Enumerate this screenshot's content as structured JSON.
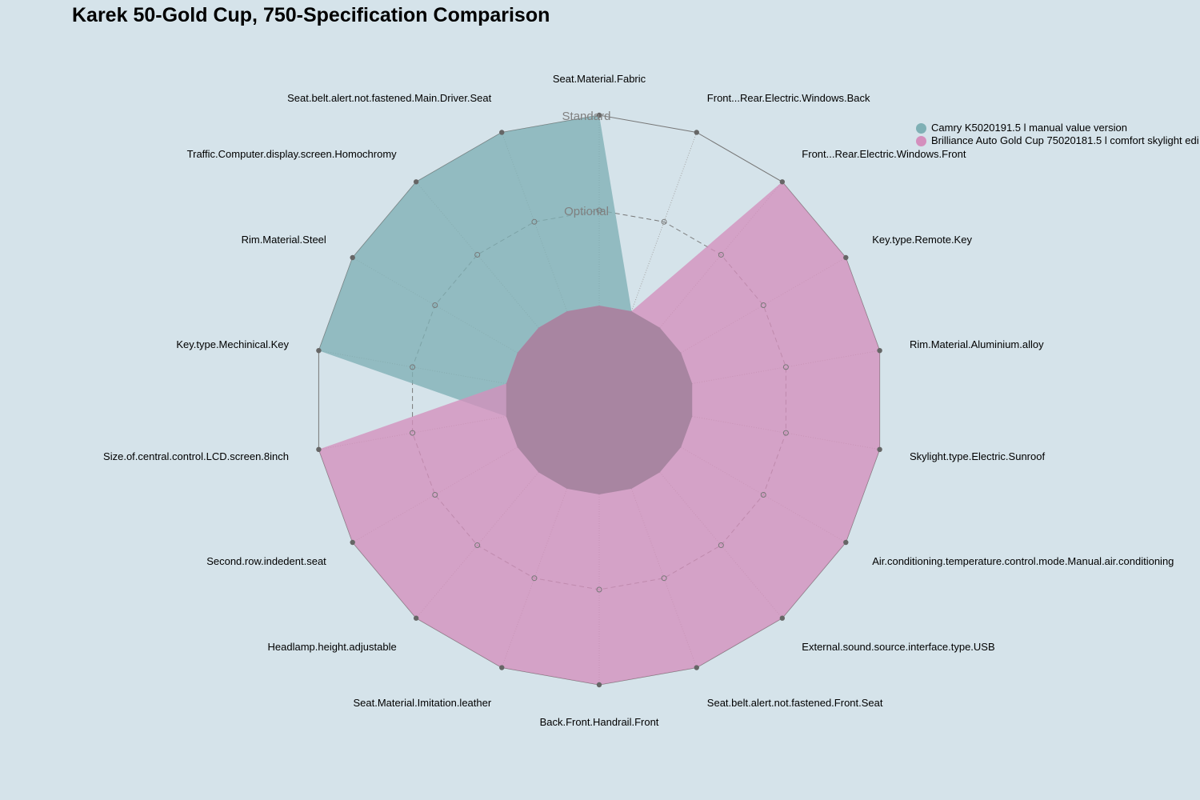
{
  "chart_data": {
    "type": "radar",
    "title": "Karek 50-Gold Cup, 750-Specification Comparison",
    "axis_labels": [
      "Seat.Material.Fabric",
      "Front...Rear.Electric.Windows.Back",
      "Front...Rear.Electric.Windows.Front",
      "Key.type.Remote.Key",
      "Rim.Material.Aluminium.alloy",
      "Skylight.type.Electric.Sunroof",
      "Air.conditioning.temperature.control.mode.Manual.air.conditioning",
      "External.sound.source.interface.type.USB",
      "Seat.belt.alert.not.fastened.Front.Seat",
      "Back.Front.Handrail.Front",
      "Seat.Material.Imitation.leather",
      "Headlamp.height.adjustable",
      "Second.row.indedent.seat",
      "Size.of.central.control.LCD.screen.8inch",
      "Key.type.Mechinical.Key",
      "Rim.Material.Steel",
      "Traffic.Computer.display.screen.Homochromy",
      "Seat.belt.alert.not.fastened.Main.Driver.Seat"
    ],
    "levels": [
      "",
      "Optional",
      "Standard"
    ],
    "scale_max": 2,
    "grid": true,
    "legend_position": "top-right",
    "series": [
      {
        "name": "Camry K5020191.5 l manual value version",
        "color": "#7fb0b5",
        "values": [
          2,
          0,
          0,
          0,
          0,
          0,
          0,
          0,
          0,
          0,
          0,
          0,
          0,
          0,
          2,
          2,
          2,
          2
        ]
      },
      {
        "name": "Brilliance Auto Gold Cup 75020181.5 l comfort skylight edi",
        "color": "#d48fbd",
        "values": [
          0,
          0,
          2,
          2,
          2,
          2,
          2,
          2,
          2,
          2,
          2,
          2,
          2,
          2,
          0,
          0,
          0,
          0
        ]
      }
    ]
  }
}
